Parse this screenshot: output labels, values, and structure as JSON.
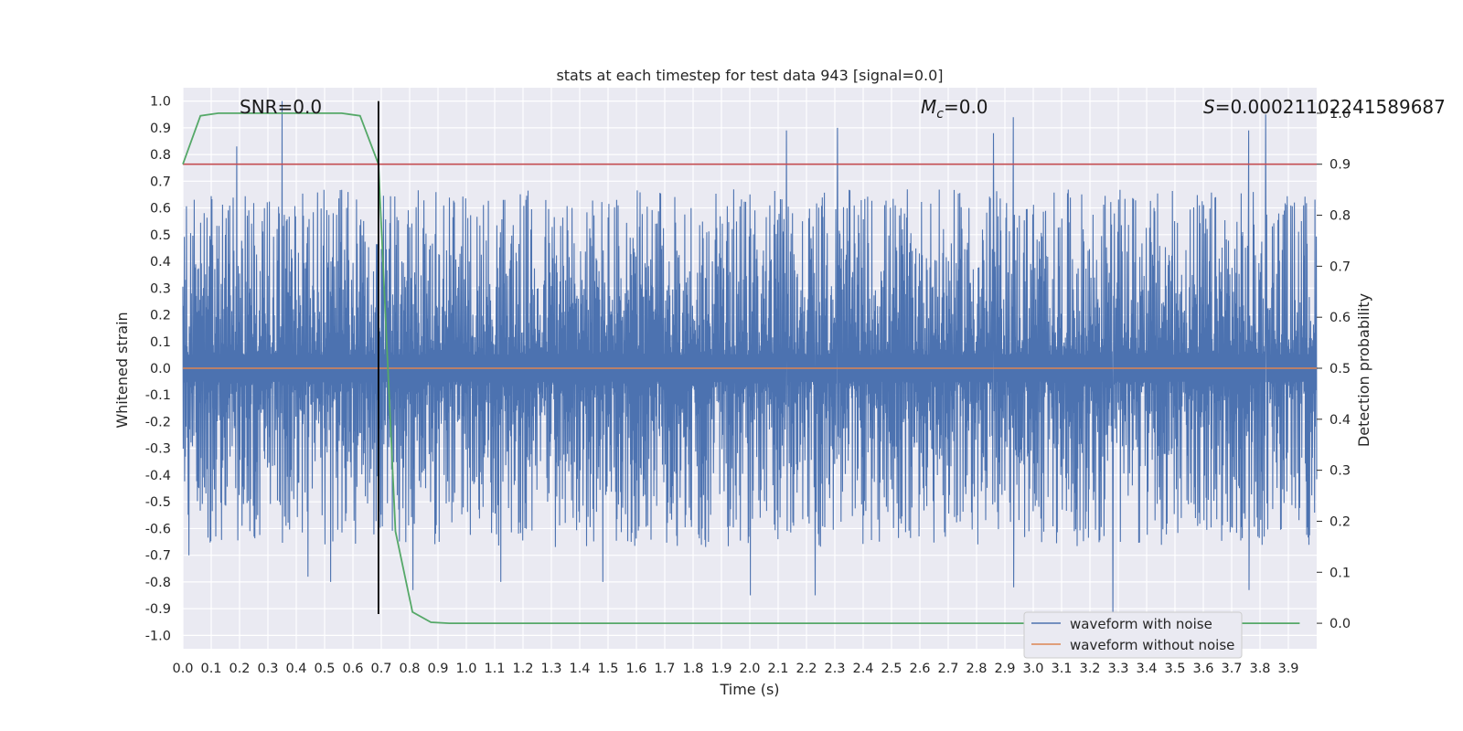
{
  "chart_data": {
    "type": "line",
    "title": "stats at each timestep for test data 943 [signal=0.0]",
    "xlabel": "Time (s)",
    "ylabel": "Whitened strain",
    "y2label": "Detection probability",
    "xlim": [
      0.0,
      4.0
    ],
    "ylim": [
      -1.05,
      1.05
    ],
    "y2lim": [
      -0.05,
      1.05
    ],
    "xticks": [
      "0.0",
      "0.1",
      "0.2",
      "0.3",
      "0.4",
      "0.5",
      "0.6",
      "0.7",
      "0.8",
      "0.9",
      "1.0",
      "1.1",
      "1.2",
      "1.3",
      "1.4",
      "1.5",
      "1.6",
      "1.7",
      "1.8",
      "1.9",
      "2.0",
      "2.1",
      "2.2",
      "2.3",
      "2.4",
      "2.5",
      "2.6",
      "2.7",
      "2.8",
      "2.9",
      "3.0",
      "3.1",
      "3.2",
      "3.3",
      "3.4",
      "3.5",
      "3.6",
      "3.7",
      "3.8",
      "3.9"
    ],
    "yticks": [
      "1.0",
      "0.9",
      "0.8",
      "0.7",
      "0.6",
      "0.5",
      "0.4",
      "0.3",
      "0.2",
      "0.1",
      "0.0",
      "-0.1",
      "-0.2",
      "-0.3",
      "-0.4",
      "-0.5",
      "-0.6",
      "-0.7",
      "-0.8",
      "-0.9",
      "-1.0"
    ],
    "y2ticks": [
      "1.0",
      "0.9",
      "0.8",
      "0.7",
      "0.6",
      "0.5",
      "0.4",
      "0.3",
      "0.2",
      "0.1",
      "0.0"
    ],
    "grid": true,
    "legend_position": "lower-right",
    "annotations": {
      "snr": "SNR=0.0",
      "mc_symbol": "M",
      "mc_sub": "c",
      "mc_value": "=0.0",
      "s_symbol": "S",
      "s_value": "=0.00021102241589687"
    },
    "series": [
      {
        "name": "waveform with noise",
        "color": "#4c72b0",
        "axis": "left",
        "kind": "dense noise, amplitude roughly between -0.93 and 1.0",
        "peaks": [
          [
            0.35,
            1.0
          ],
          [
            0.19,
            0.83
          ],
          [
            2.13,
            0.89
          ],
          [
            2.31,
            0.9
          ],
          [
            2.86,
            0.88
          ],
          [
            2.93,
            0.94
          ],
          [
            3.76,
            0.89
          ],
          [
            3.82,
            0.95
          ]
        ],
        "troughs": [
          [
            0.02,
            -0.7
          ],
          [
            0.44,
            -0.78
          ],
          [
            0.52,
            -0.8
          ],
          [
            0.81,
            -0.83
          ],
          [
            1.12,
            -0.8
          ],
          [
            1.48,
            -0.8
          ],
          [
            2.0,
            -0.85
          ],
          [
            2.23,
            -0.85
          ],
          [
            2.93,
            -0.82
          ],
          [
            3.28,
            -0.93
          ],
          [
            3.76,
            -0.83
          ]
        ]
      },
      {
        "name": "waveform without noise",
        "color": "#dd8452",
        "axis": "left",
        "x": [
          0.0,
          4.0
        ],
        "y": [
          0.0,
          0.0
        ]
      },
      {
        "name": "detection probability",
        "color": "#55a868",
        "axis": "right",
        "x": [
          0.0,
          0.062,
          0.125,
          0.25,
          0.375,
          0.5,
          0.56,
          0.625,
          0.69,
          0.75,
          0.81,
          0.875,
          0.94,
          1.0,
          2.0,
          3.0,
          3.94
        ],
        "y": [
          0.9,
          0.995,
          1.0,
          1.0,
          1.0,
          1.0,
          1.0,
          0.995,
          0.9,
          0.18,
          0.022,
          0.002,
          0.0,
          0.0,
          0.0,
          0.0,
          0.0
        ]
      }
    ],
    "threshold_line": {
      "axis": "right",
      "value": 0.9,
      "color": "#c44e52"
    },
    "vertical_marker": {
      "x": 0.69,
      "y_from": -0.92,
      "y_to": 1.0,
      "color": "#000000"
    }
  }
}
